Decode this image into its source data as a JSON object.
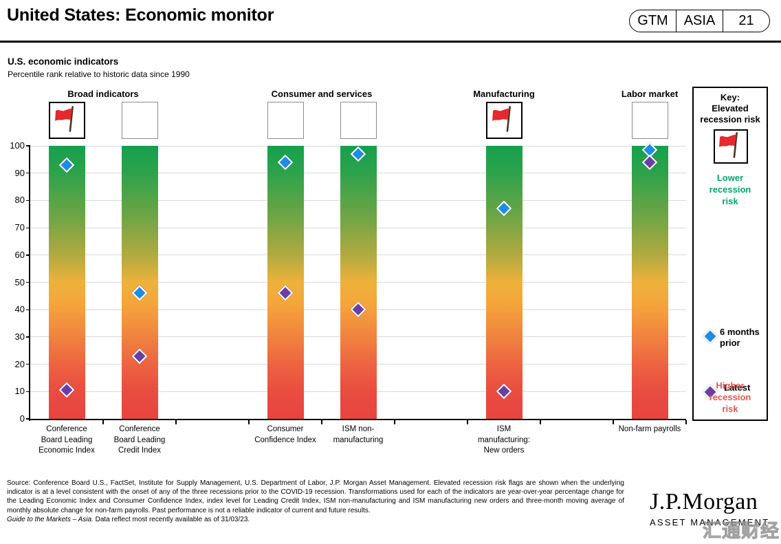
{
  "header": {
    "title": "United States: Economic monitor",
    "badge": {
      "items": [
        "GTM",
        "ASIA",
        "21"
      ]
    }
  },
  "chart_heading": {
    "title": "U.S. economic indicators",
    "subtitle": "Percentile rank relative to historic data since 1990"
  },
  "chart_data": {
    "type": "scatter",
    "title": "U.S. economic indicators",
    "subtitle": "Percentile rank relative to historic data since 1990",
    "ylim": [
      0,
      100
    ],
    "ytick_step": 10,
    "grid": true,
    "bar_style": "vertical gradient green(top)=lower recession risk to red(bottom)=higher recession risk",
    "series": [
      {
        "name": "6 months prior",
        "color": "#1f8ce4"
      },
      {
        "name": "Latest",
        "color": "#6a3fa5"
      }
    ],
    "groups": [
      {
        "label": "Broad indicators",
        "indicators": [
          {
            "label": "Conference Board Leading Economic Index",
            "label_lines": [
              "Conference",
              "Board Leading",
              "Economic Index"
            ],
            "recession_flag": true,
            "six_months_prior": 93,
            "latest": 10.5
          },
          {
            "label": "Conference Board Leading Credit Index",
            "label_lines": [
              "Conference",
              "Board Leading",
              "Credit Index"
            ],
            "recession_flag": false,
            "six_months_prior": 46,
            "latest": 23
          }
        ]
      },
      {
        "label": "Consumer and services",
        "indicators": [
          {
            "label": "Consumer Confidence Index",
            "label_lines": [
              "Consumer",
              "Confidence Index"
            ],
            "recession_flag": false,
            "six_months_prior": 94,
            "latest": 46
          },
          {
            "label": "ISM non-manufacturing",
            "label_lines": [
              "ISM non-",
              "manufacturing"
            ],
            "recession_flag": false,
            "six_months_prior": 97,
            "latest": 40
          }
        ]
      },
      {
        "label": "Manufacturing",
        "indicators": [
          {
            "label": "ISM manufacturing: New orders",
            "label_lines": [
              "ISM",
              "manufacturing:",
              "New orders"
            ],
            "recession_flag": true,
            "six_months_prior": 77,
            "latest": 10
          }
        ]
      },
      {
        "label": "Labor market",
        "indicators": [
          {
            "label": "Non-farm payrolls",
            "label_lines": [
              "Non-farm payrolls"
            ],
            "recession_flag": false,
            "six_months_prior": 98.5,
            "latest": 94
          }
        ]
      }
    ]
  },
  "key": {
    "title": "Key:\nElevated\nrecession risk",
    "lower": "Lower\nrecession\nrisk",
    "prior_label": "6 months\nprior",
    "latest_label": "Latest",
    "higher": "Higher\nrecession\nrisk",
    "colors": {
      "lower_text": "#00a470",
      "higher_text": "#e85450",
      "flag": "#e8282c",
      "prior_marker": "#1f8ce4",
      "latest_marker": "#6a3fa5"
    }
  },
  "footer": {
    "source": "Source: Conference Board U.S., FactSet, Institute for Supply Management, U.S. Department of Labor, J.P. Morgan Asset Management. Elevated recession risk flags are shown when the underlying indicator is at a level consistent with the onset of any of the three recessions prior to the COVID-19 recession. Transformations used for each of the indicators are year-over-year percentage change for the Leading Economic Index and Consumer Confidence Index, index level for Leading Credit Index, ISM non-manufacturing and ISM manufacturing new orders and three-month moving average of monthly absolute change for non-farm payrolls. Past performance is not a reliable indicator of current and future results.",
    "gtm_italic": "Guide to the Markets – Asia.",
    "gtm_rest": " Data reflect most recently available as of 31/03/23."
  },
  "logo": {
    "brand": "J.P.Morgan",
    "division": "ASSET MANAGEMENT"
  },
  "watermark": "汇通财经"
}
